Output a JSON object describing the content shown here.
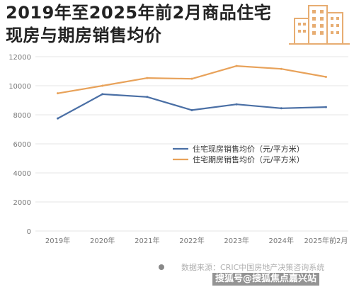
{
  "header": {
    "title_line1": "2019年至2025年前2月商品住宅",
    "title_line2": "现房与期房销售均价"
  },
  "colors": {
    "series_spot": "#4a6fa5",
    "series_presale": "#e8a25a",
    "icon": "#e7ad72",
    "grid": "#e6e6e6",
    "axis_text": "#777777"
  },
  "chart_data": {
    "type": "line",
    "categories": [
      "2019年",
      "2020年",
      "2021年",
      "2022年",
      "2023年",
      "2024年",
      "2025年前2月"
    ],
    "y_ticks": [
      "0",
      "2000",
      "4000",
      "6000",
      "8000",
      "10000",
      "12000"
    ],
    "ylim": [
      0,
      12000
    ],
    "grid": true,
    "legend_position": "center-right",
    "series": [
      {
        "name": "住宅现房销售均价（元/平方米）",
        "values": [
          7750,
          9420,
          9230,
          8320,
          8720,
          8450,
          8530
        ]
      },
      {
        "name": "住宅期房销售均价（元/平方米）",
        "values": [
          9480,
          10000,
          10530,
          10480,
          11360,
          11160,
          10610
        ]
      }
    ]
  },
  "footer": {
    "source": "数据来源：CRIC中国房地产决策咨询系统",
    "watermark": "搜狐号@搜狐焦点嘉兴站"
  }
}
